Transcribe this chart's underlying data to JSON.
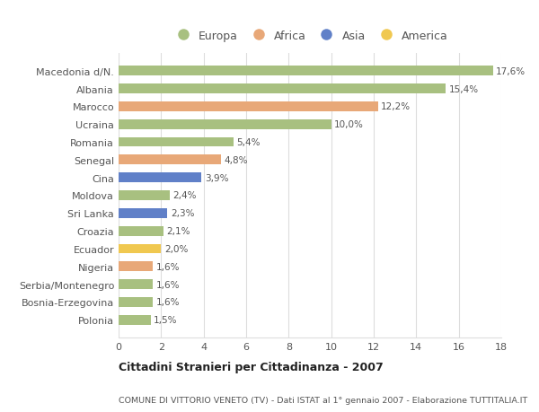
{
  "categories": [
    "Polonia",
    "Bosnia-Erzegovina",
    "Serbia/Montenegro",
    "Nigeria",
    "Ecuador",
    "Croazia",
    "Sri Lanka",
    "Moldova",
    "Cina",
    "Senegal",
    "Romania",
    "Ucraina",
    "Marocco",
    "Albania",
    "Macedonia d/N."
  ],
  "values": [
    1.5,
    1.6,
    1.6,
    1.6,
    2.0,
    2.1,
    2.3,
    2.4,
    3.9,
    4.8,
    5.4,
    10.0,
    12.2,
    15.4,
    17.6
  ],
  "labels": [
    "1,5%",
    "1,6%",
    "1,6%",
    "1,6%",
    "2,0%",
    "2,1%",
    "2,3%",
    "2,4%",
    "3,9%",
    "4,8%",
    "5,4%",
    "10,0%",
    "12,2%",
    "15,4%",
    "17,6%"
  ],
  "colors": [
    "#a8c080",
    "#a8c080",
    "#a8c080",
    "#e8a878",
    "#f0c850",
    "#a8c080",
    "#6080c8",
    "#a8c080",
    "#6080c8",
    "#e8a878",
    "#a8c080",
    "#a8c080",
    "#e8a878",
    "#a8c080",
    "#a8c080"
  ],
  "legend_labels": [
    "Europa",
    "Africa",
    "Asia",
    "America"
  ],
  "legend_colors": [
    "#a8c080",
    "#e8a878",
    "#6080c8",
    "#f0c850"
  ],
  "title": "Cittadini Stranieri per Cittadinanza - 2007",
  "subtitle": "COMUNE DI VITTORIO VENETO (TV) - Dati ISTAT al 1° gennaio 2007 - Elaborazione TUTTITALIA.IT",
  "xlim": [
    0,
    18
  ],
  "xticks": [
    0,
    2,
    4,
    6,
    8,
    10,
    12,
    14,
    16,
    18
  ],
  "background_color": "#ffffff",
  "grid_color": "#dddddd",
  "bar_height": 0.55,
  "fig_width": 6.0,
  "fig_height": 4.6,
  "dpi": 100
}
